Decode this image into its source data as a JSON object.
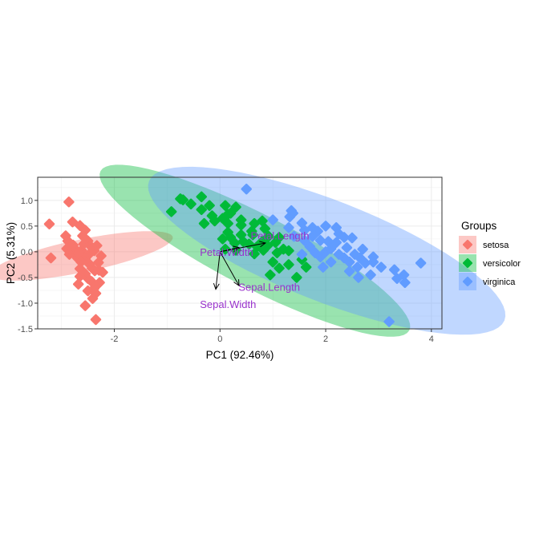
{
  "chart_data": {
    "type": "scatter",
    "xlabel": "PC1 (92.46%)",
    "ylabel": "PC2 (5.31%)",
    "xlim": [
      -3.45,
      4.2
    ],
    "ylim": [
      -1.5,
      1.45
    ],
    "x_ticks": [
      -2,
      0,
      2,
      4
    ],
    "y_ticks": [
      1.0,
      0.5,
      0.0,
      -0.5,
      -1.0,
      -1.5
    ],
    "x_tick_labels": [
      "-2",
      "0",
      "2",
      "4"
    ],
    "y_tick_labels": [
      "1.0",
      "0.5",
      "0.0",
      "-0.5",
      "-1.0",
      "-1.5"
    ],
    "grid": true,
    "legend": {
      "title": "Groups",
      "placement": "right",
      "entries": [
        "setosa",
        "versicolor",
        "virginica"
      ]
    },
    "series": [
      {
        "name": "setosa",
        "color": "#F8766D",
        "ellipse": {
          "center": [
            -2.62,
            -0.08
          ],
          "sd": [
            0.13,
            0.72
          ],
          "rotation_deg": -78
        },
        "points": [
          [
            -2.86,
            0.97
          ],
          [
            -2.79,
            0.58
          ],
          [
            -2.65,
            0.51
          ],
          [
            -3.23,
            0.54
          ],
          [
            -3.2,
            -0.12
          ],
          [
            -2.6,
            0.31
          ],
          [
            -2.92,
            0.31
          ],
          [
            -2.88,
            0.21
          ],
          [
            -2.78,
            0.13
          ],
          [
            -2.55,
            0.42
          ],
          [
            -2.75,
            0.06
          ],
          [
            -2.5,
            0.21
          ],
          [
            -2.45,
            0.11
          ],
          [
            -2.9,
            0.06
          ],
          [
            -2.62,
            0.03
          ],
          [
            -2.8,
            0.02
          ],
          [
            -2.85,
            -0.05
          ],
          [
            -2.72,
            -0.07
          ],
          [
            -2.62,
            -0.07
          ],
          [
            -2.48,
            -0.05
          ],
          [
            -2.38,
            0.02
          ],
          [
            -2.33,
            0.12
          ],
          [
            -2.25,
            -0.08
          ],
          [
            -2.55,
            -0.13
          ],
          [
            -2.7,
            -0.12
          ],
          [
            -2.63,
            -0.2
          ],
          [
            -2.47,
            -0.24
          ],
          [
            -2.3,
            -0.21
          ],
          [
            -2.42,
            -0.32
          ],
          [
            -2.65,
            -0.33
          ],
          [
            -2.55,
            -0.43
          ],
          [
            -2.37,
            -0.37
          ],
          [
            -2.29,
            -0.36
          ],
          [
            -2.22,
            -0.4
          ],
          [
            -2.5,
            -0.52
          ],
          [
            -2.65,
            -0.48
          ],
          [
            -2.43,
            -0.58
          ],
          [
            -2.28,
            -0.6
          ],
          [
            -2.68,
            -0.63
          ],
          [
            -2.38,
            -0.71
          ],
          [
            -2.5,
            -0.76
          ],
          [
            -2.35,
            -0.81
          ],
          [
            -2.41,
            -0.91
          ],
          [
            -2.55,
            -1.05
          ],
          [
            -2.35,
            -1.32
          ],
          [
            -2.68,
            -0.02
          ],
          [
            -2.58,
            0.15
          ],
          [
            -2.4,
            0.06
          ]
        ]
      },
      {
        "name": "versicolor",
        "color": "#00BA38",
        "ellipse": {
          "center": [
            0.66,
            0.02
          ],
          "sd": [
            1.35,
            0.29
          ],
          "rotation_deg": -28
        },
        "points": [
          [
            -0.7,
            1.01
          ],
          [
            -0.75,
            1.03
          ],
          [
            -0.35,
            1.07
          ],
          [
            -0.92,
            0.78
          ],
          [
            -0.55,
            0.93
          ],
          [
            -0.35,
            0.82
          ],
          [
            -0.2,
            0.9
          ],
          [
            0.1,
            0.9
          ],
          [
            0.2,
            0.75
          ],
          [
            0.05,
            0.65
          ],
          [
            -0.3,
            0.55
          ],
          [
            -0.15,
            0.7
          ],
          [
            0.15,
            0.73
          ],
          [
            0.4,
            0.62
          ],
          [
            0.15,
            0.55
          ],
          [
            0.4,
            0.52
          ],
          [
            0.65,
            0.55
          ],
          [
            0.3,
            0.87
          ],
          [
            -0.1,
            0.6
          ],
          [
            0.8,
            0.6
          ],
          [
            0.85,
            0.45
          ],
          [
            0.6,
            0.4
          ],
          [
            0.4,
            0.33
          ],
          [
            0.2,
            0.28
          ],
          [
            0.05,
            0.25
          ],
          [
            0.1,
            0.05
          ],
          [
            0.15,
            0.38
          ],
          [
            0.28,
            0.17
          ],
          [
            0.44,
            0.2
          ],
          [
            0.55,
            0.15
          ],
          [
            0.62,
            0.33
          ],
          [
            0.7,
            0.1
          ],
          [
            0.8,
            0.2
          ],
          [
            0.9,
            0.12
          ],
          [
            0.92,
            0.3
          ],
          [
            1.05,
            0.18
          ],
          [
            1.12,
            0.28
          ],
          [
            0.82,
            0.03
          ],
          [
            0.65,
            -0.04
          ],
          [
            1.08,
            -0.02
          ],
          [
            1.2,
            0.05
          ],
          [
            1.3,
            0.02
          ],
          [
            1.0,
            -0.2
          ],
          [
            1.12,
            -0.32
          ],
          [
            0.95,
            -0.45
          ],
          [
            1.3,
            -0.25
          ],
          [
            1.45,
            -0.5
          ],
          [
            1.55,
            -0.15
          ],
          [
            1.63,
            -0.3
          ],
          [
            0.3,
            0.03
          ]
        ]
      },
      {
        "name": "virginica",
        "color": "#619CFF",
        "ellipse": {
          "center": [
            2.02,
            0.02
          ],
          "sd": [
            1.48,
            0.4
          ],
          "rotation_deg": -22
        },
        "points": [
          [
            0.5,
            1.22
          ],
          [
            1.0,
            0.62
          ],
          [
            1.32,
            0.68
          ],
          [
            1.35,
            0.8
          ],
          [
            1.38,
            0.75
          ],
          [
            1.55,
            0.56
          ],
          [
            1.3,
            0.47
          ],
          [
            1.6,
            0.42
          ],
          [
            1.75,
            0.47
          ],
          [
            1.85,
            0.4
          ],
          [
            2.0,
            0.5
          ],
          [
            2.2,
            0.47
          ],
          [
            2.35,
            0.28
          ],
          [
            2.5,
            0.27
          ],
          [
            1.9,
            0.22
          ],
          [
            2.05,
            0.2
          ],
          [
            2.2,
            0.18
          ],
          [
            2.4,
            0.08
          ],
          [
            1.7,
            0.1
          ],
          [
            1.8,
            -0.02
          ],
          [
            1.9,
            -0.1
          ],
          [
            2.0,
            0.0
          ],
          [
            2.1,
            0.06
          ],
          [
            2.25,
            -0.05
          ],
          [
            2.35,
            -0.12
          ],
          [
            2.55,
            -0.05
          ],
          [
            2.45,
            -0.2
          ],
          [
            2.65,
            -0.12
          ],
          [
            2.75,
            -0.22
          ],
          [
            2.9,
            -0.2
          ],
          [
            2.6,
            -0.3
          ],
          [
            2.85,
            -0.45
          ],
          [
            3.05,
            -0.3
          ],
          [
            3.35,
            -0.52
          ],
          [
            3.48,
            -0.45
          ],
          [
            3.8,
            -0.22
          ],
          [
            3.3,
            -0.35
          ],
          [
            3.5,
            -0.6
          ],
          [
            3.2,
            -1.36
          ],
          [
            1.55,
            -0.05
          ],
          [
            1.6,
            0.22
          ],
          [
            1.95,
            -0.3
          ],
          [
            2.25,
            0.35
          ],
          [
            2.1,
            -0.2
          ],
          [
            2.7,
            0.05
          ],
          [
            1.75,
            0.3
          ],
          [
            2.45,
            -0.38
          ],
          [
            2.62,
            -0.5
          ],
          [
            1.4,
            0.3
          ],
          [
            2.9,
            -0.1
          ]
        ]
      }
    ],
    "loadings": [
      {
        "name": "Sepal.Length",
        "end": [
          0.36,
          -0.66
        ],
        "label_pos": [
          0.35,
          -0.7
        ]
      },
      {
        "name": "Sepal.Width",
        "end": [
          -0.08,
          -0.73
        ],
        "label_pos": [
          -0.38,
          -1.03
        ]
      },
      {
        "name": "Petal.Length",
        "end": [
          0.86,
          0.17
        ],
        "label_pos": [
          0.58,
          0.3
        ]
      },
      {
        "name": "Petal.Width",
        "end": [
          0.36,
          0.08
        ],
        "label_pos": [
          -0.38,
          -0.02
        ]
      }
    ],
    "loading_label_color": "#9932CC"
  }
}
